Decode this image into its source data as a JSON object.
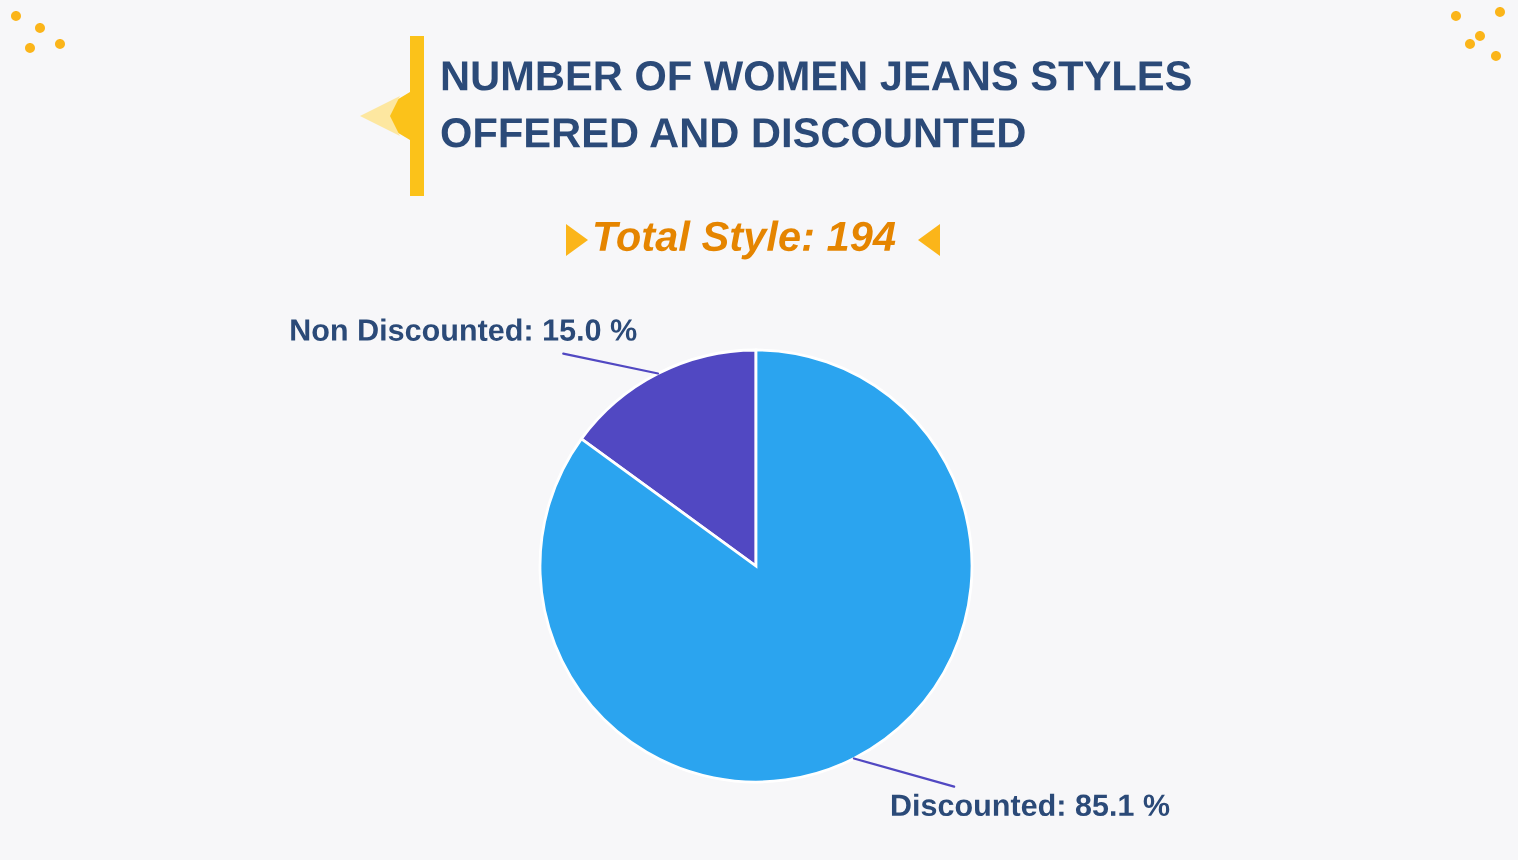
{
  "chart_data": {
    "type": "pie",
    "title": "NUMBER OF WOMEN JEANS STYLES\nOFFERED AND DISCOUNTED",
    "subtitle": "Total Style: 194",
    "categories": [
      "Non Discounted",
      "Discounted"
    ],
    "values": [
      15.0,
      85.1
    ],
    "colors": [
      "#5148c2",
      "#2ba4ef"
    ],
    "value_labels": [
      "15.0 %",
      "85.1 %"
    ],
    "legend": false
  }
}
